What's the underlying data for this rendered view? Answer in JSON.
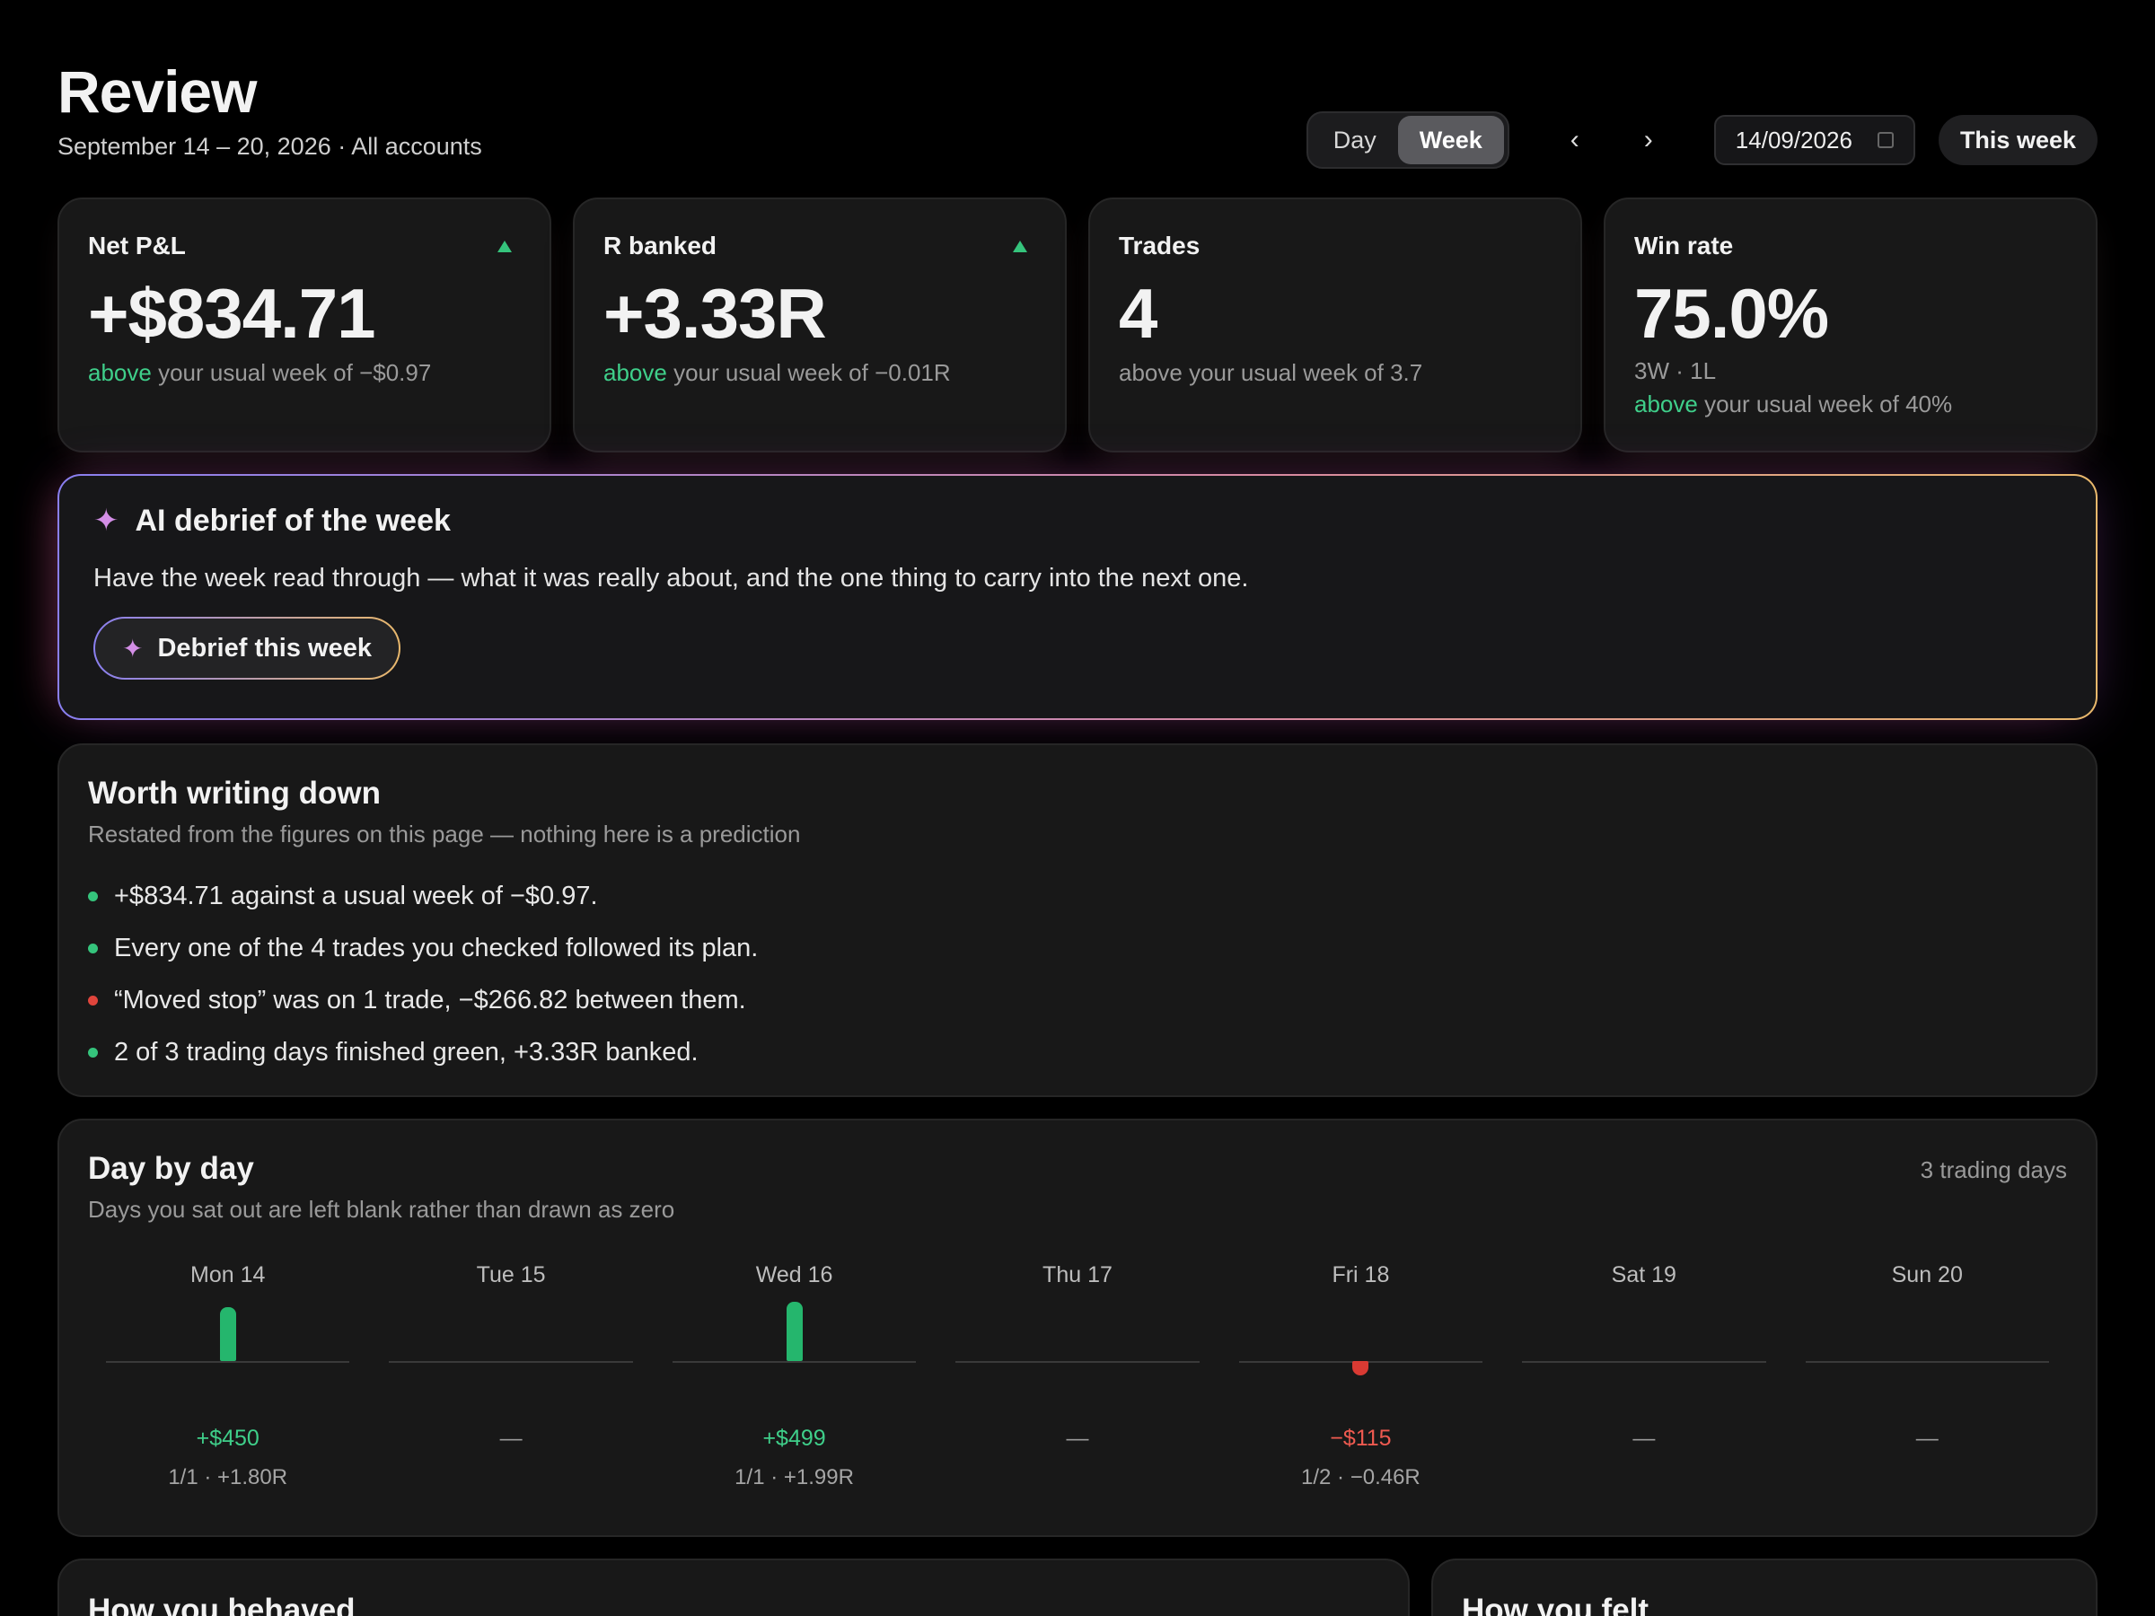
{
  "header": {
    "title": "Review",
    "subtitle": "September 14 – 20, 2026 · All accounts"
  },
  "controls": {
    "segments": [
      "Day",
      "Week"
    ],
    "active_segment": "Week",
    "prev_icon": "chevron-left-icon",
    "next_icon": "chevron-right-icon",
    "prev_glyph": "‹",
    "next_glyph": "›",
    "date_value": "14/09/2026",
    "this_week_label": "This week"
  },
  "kpis": [
    {
      "label": "Net P&L",
      "value": "+$834.71",
      "trend": "up",
      "note_good": "above",
      "note_rest": " your usual week of −$0.97"
    },
    {
      "label": "R banked",
      "value": "+3.33R",
      "trend": "up",
      "note_good": "above",
      "note_rest": " your usual week of −0.01R"
    },
    {
      "label": "Trades",
      "value": "4",
      "note_plain": "above your usual week of 3.7"
    },
    {
      "label": "Win rate",
      "value": "75.0%",
      "sub": "3W · 1L",
      "note_good": "above",
      "note_rest": " your usual week of 40%"
    }
  ],
  "ai": {
    "title": "AI debrief of the week",
    "description": "Have the week read through — what it was really about, and the one thing to carry into the next one.",
    "button_label": "Debrief this week",
    "spark_glyph": "✦"
  },
  "worth": {
    "title": "Worth writing down",
    "subtitle": "Restated from the figures on this page — nothing here is a prediction",
    "items": [
      {
        "text": "+$834.71 against a usual week of −$0.97.",
        "tone": "green"
      },
      {
        "text": "Every one of the 4 trades you checked followed its plan.",
        "tone": "green"
      },
      {
        "text": "“Moved stop” was on 1 trade, −$266.82 between them.",
        "tone": "red"
      },
      {
        "text": "2 of 3 trading days finished green, +3.33R banked.",
        "tone": "green"
      }
    ]
  },
  "day_by_day": {
    "title": "Day by day",
    "subtitle": "Days you sat out are left blank rather than drawn as zero",
    "count_label": "3 trading days",
    "days": [
      {
        "label": "Mon 14",
        "pnl": "+$450",
        "pnl_value": 450,
        "detail": "1/1 · +1.80R"
      },
      {
        "label": "Tue 15",
        "pnl": "—",
        "pnl_value": null,
        "detail": ""
      },
      {
        "label": "Wed 16",
        "pnl": "+$499",
        "pnl_value": 499,
        "detail": "1/1 · +1.99R"
      },
      {
        "label": "Thu 17",
        "pnl": "—",
        "pnl_value": null,
        "detail": ""
      },
      {
        "label": "Fri 18",
        "pnl": "−$115",
        "pnl_value": -115,
        "detail": "1/2 · −0.46R"
      },
      {
        "label": "Sat 19",
        "pnl": "—",
        "pnl_value": null,
        "detail": ""
      },
      {
        "label": "Sun 20",
        "pnl": "—",
        "pnl_value": null,
        "detail": ""
      }
    ]
  },
  "sections": {
    "behaved_title": "How you behaved",
    "felt_title": "How you felt"
  },
  "colors": {
    "positive": "#35c47c",
    "negative": "#e0453c"
  }
}
